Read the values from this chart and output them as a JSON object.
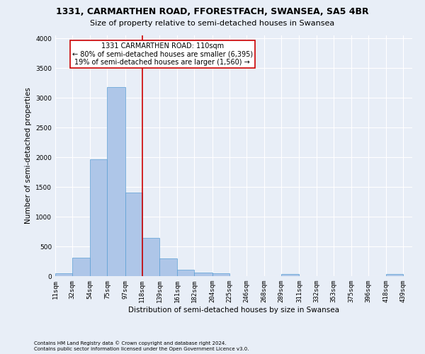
{
  "title": "1331, CARMARTHEN ROAD, FFORESTFACH, SWANSEA, SA5 4BR",
  "subtitle": "Size of property relative to semi-detached houses in Swansea",
  "xlabel": "Distribution of semi-detached houses by size in Swansea",
  "ylabel": "Number of semi-detached properties",
  "footer1": "Contains HM Land Registry data © Crown copyright and database right 2024.",
  "footer2": "Contains public sector information licensed under the Open Government Licence v3.0.",
  "annotation_title": "1331 CARMARTHEN ROAD: 110sqm",
  "annotation_line1": "← 80% of semi-detached houses are smaller (6,395)",
  "annotation_line2": "19% of semi-detached houses are larger (1,560) →",
  "bar_left_edges": [
    11,
    32,
    54,
    75,
    97,
    118,
    139,
    161,
    182,
    204,
    225,
    246,
    268,
    289,
    311,
    332,
    353,
    375,
    396,
    418
  ],
  "bar_widths": [
    21,
    22,
    21,
    22,
    21,
    21,
    22,
    21,
    22,
    21,
    21,
    22,
    21,
    22,
    21,
    21,
    22,
    21,
    22,
    21
  ],
  "bar_heights": [
    50,
    315,
    1970,
    3175,
    1400,
    640,
    295,
    110,
    65,
    50,
    0,
    0,
    0,
    30,
    0,
    0,
    0,
    0,
    0,
    30
  ],
  "bar_color": "#aec6e8",
  "bar_edgecolor": "#5a9fd4",
  "vline_x": 118,
  "vline_color": "#cc0000",
  "annotation_box_color": "#cc0000",
  "ylim": [
    0,
    4050
  ],
  "xlim": [
    11,
    450
  ],
  "yticks": [
    0,
    500,
    1000,
    1500,
    2000,
    2500,
    3000,
    3500,
    4000
  ],
  "xtick_labels": [
    "11sqm",
    "32sqm",
    "54sqm",
    "75sqm",
    "97sqm",
    "118sqm",
    "139sqm",
    "161sqm",
    "182sqm",
    "204sqm",
    "225sqm",
    "246sqm",
    "268sqm",
    "289sqm",
    "311sqm",
    "332sqm",
    "353sqm",
    "375sqm",
    "396sqm",
    "418sqm",
    "439sqm"
  ],
  "xtick_positions": [
    11,
    32,
    54,
    75,
    97,
    118,
    139,
    161,
    182,
    204,
    225,
    246,
    268,
    289,
    311,
    332,
    353,
    375,
    396,
    418,
    439
  ],
  "background_color": "#e8eef7",
  "plot_bg_color": "#e8eef7",
  "grid_color": "#ffffff",
  "title_fontsize": 9,
  "subtitle_fontsize": 8,
  "axis_label_fontsize": 7.5,
  "tick_fontsize": 6.5,
  "annotation_fontsize": 7,
  "footer_fontsize": 5
}
